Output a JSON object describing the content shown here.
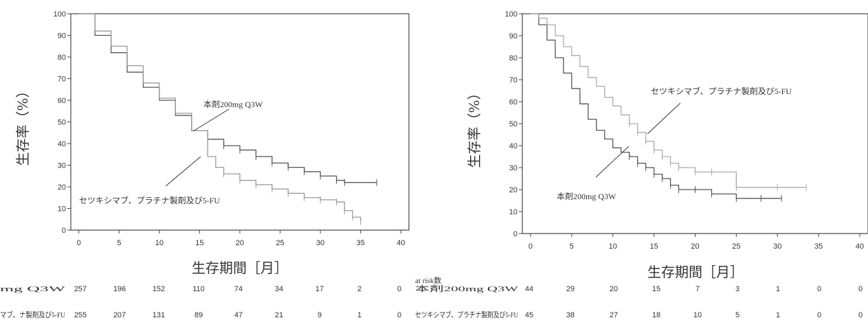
{
  "chart_data": [
    {
      "type": "line",
      "title": "",
      "xlabel": "生存期間［月］",
      "ylabel": "生存率（%）",
      "xlim": [
        -1,
        41
      ],
      "ylim": [
        0,
        100
      ],
      "xticks": [
        0,
        5,
        10,
        15,
        20,
        25,
        30,
        35,
        40
      ],
      "yticks": [
        0,
        10,
        20,
        30,
        40,
        50,
        60,
        70,
        80,
        90,
        100
      ],
      "annotations": [
        "本剤200mg Q3W",
        "セツキシマブ、プラチナ製剤及び5-FU"
      ],
      "series": [
        {
          "name": "本剤200mg Q3W",
          "color": "#555555",
          "x": [
            0,
            2,
            4,
            6,
            8,
            10,
            12,
            14,
            16,
            18,
            20,
            22,
            24,
            26,
            28,
            30,
            32,
            33,
            37
          ],
          "y": [
            100,
            90,
            82,
            73,
            66,
            60,
            53,
            46,
            42,
            39,
            37,
            34,
            31,
            29,
            27,
            25,
            23,
            22,
            22
          ]
        },
        {
          "name": "セツキシマブ、プラチナ製剤及び5-FU",
          "color": "#999999",
          "x": [
            0,
            2,
            4,
            6,
            8,
            10,
            12,
            14,
            16,
            17,
            18,
            20,
            22,
            24,
            26,
            28,
            30,
            32,
            33,
            34,
            35
          ],
          "y": [
            100,
            92,
            85,
            76,
            68,
            61,
            54,
            46,
            34,
            29,
            26,
            23,
            21,
            19,
            17,
            15,
            14,
            13,
            9,
            6,
            4
          ]
        }
      ],
      "risk_table": {
        "rows": [
          {
            "label": "mg Q3W",
            "values": [
              "257",
              "196",
              "152",
              "110",
              "74",
              "34",
              "17",
              "2",
              "0"
            ]
          },
          {
            "label": "マブ、ナ製剤及び5-FU",
            "values": [
              "255",
              "207",
              "131",
              "89",
              "47",
              "21",
              "9",
              "1",
              "0"
            ]
          }
        ]
      }
    },
    {
      "type": "line",
      "title": "",
      "xlabel": "生存期間［月］",
      "ylabel": "生存率（%）",
      "xlim": [
        -1,
        41
      ],
      "ylim": [
        0,
        100
      ],
      "xticks": [
        0,
        5,
        10,
        15,
        20,
        25,
        30,
        35,
        40
      ],
      "yticks": [
        0,
        10,
        20,
        30,
        40,
        50,
        60,
        70,
        80,
        90,
        100
      ],
      "annotations": [
        "セツキシマブ、プラチナ製剤及び5-FU",
        "本剤200mg Q3W"
      ],
      "series": [
        {
          "name": "本剤200mg Q3W",
          "color": "#555555",
          "x": [
            0,
            1,
            2,
            3,
            4,
            5,
            6,
            7,
            8,
            9,
            10,
            11,
            12,
            13,
            14,
            15,
            16,
            17,
            18,
            20,
            22,
            25,
            28,
            30.5
          ],
          "y": [
            100,
            95,
            88,
            80,
            73,
            66,
            59,
            52,
            47,
            43,
            39,
            37,
            35,
            32,
            30,
            27,
            25,
            22,
            20,
            20,
            18,
            16,
            16,
            16
          ]
        },
        {
          "name": "セツキシマブ、プラチナ製剤及び5-FU",
          "color": "#aaaaaa",
          "x": [
            0,
            1,
            2,
            3,
            4,
            5,
            6,
            7,
            8,
            9,
            10,
            11,
            12,
            13,
            14,
            15,
            16,
            17,
            18,
            20,
            22,
            25,
            30,
            33.5
          ],
          "y": [
            100,
            98,
            95,
            90,
            85,
            81,
            76,
            71,
            67,
            62,
            58,
            54,
            50,
            46,
            42,
            38,
            35,
            32,
            30,
            28,
            28,
            21,
            21,
            21
          ]
        }
      ],
      "risk_table": {
        "header": "at risk数",
        "rows": [
          {
            "label": "本剤200mg Q3W",
            "values": [
              "44",
              "29",
              "20",
              "15",
              "7",
              "3",
              "1",
              "0",
              "0"
            ]
          },
          {
            "label": "セツキシマブ、プラチナ製剤及び5-FU",
            "values": [
              "45",
              "38",
              "27",
              "18",
              "10",
              "5",
              "1",
              "0",
              "0"
            ]
          }
        ]
      }
    }
  ]
}
